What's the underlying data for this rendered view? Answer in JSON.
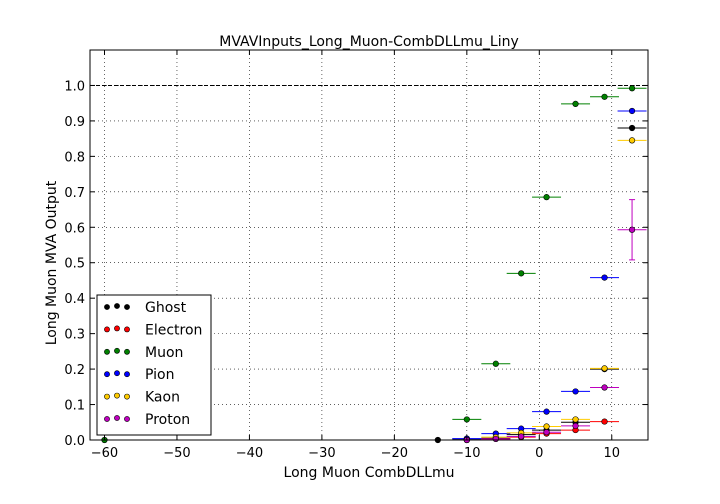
{
  "chart_data": {
    "type": "scatter",
    "title": "MVAVInputs_Long_Muon-CombDLLmu_Liny",
    "xlabel": "Long Muon CombDLLmu",
    "ylabel": "Long Muon MVA Output",
    "xlim": [
      -62,
      15
    ],
    "ylim": [
      0,
      1.1
    ],
    "x_ticks": [
      -60,
      -50,
      -40,
      -30,
      -20,
      -10,
      0,
      10
    ],
    "y_ticks": [
      0.0,
      0.1,
      0.2,
      0.3,
      0.4,
      0.5,
      0.6,
      0.7,
      0.8,
      0.9,
      1.0
    ],
    "x_tick_labels": [
      "−60",
      "−50",
      "−40",
      "−30",
      "−20",
      "−10",
      "0",
      "10"
    ],
    "y_tick_labels": [
      "0.0",
      "0.1",
      "0.2",
      "0.3",
      "0.4",
      "0.5",
      "0.6",
      "0.7",
      "0.8",
      "0.9",
      "1.0"
    ],
    "grid": true,
    "reference_line_y": 1.0,
    "legend_position": "lower-left",
    "series": [
      {
        "name": "Ghost",
        "color": "#000000",
        "points": [
          {
            "x": -14,
            "y": 0.0,
            "xerr": 2,
            "yerr": 0.003
          },
          {
            "x": -10,
            "y": 0.003,
            "xerr": 2,
            "yerr": 0.003
          },
          {
            "x": -6,
            "y": 0.005,
            "xerr": 2,
            "yerr": 0.003
          },
          {
            "x": -2.5,
            "y": 0.015,
            "xerr": 2,
            "yerr": 0.003
          },
          {
            "x": 1,
            "y": 0.028,
            "xerr": 2,
            "yerr": 0.003
          },
          {
            "x": 5,
            "y": 0.05,
            "xerr": 2,
            "yerr": 0.004
          },
          {
            "x": 9,
            "y": 0.2,
            "xerr": 2,
            "yerr": 0.005
          },
          {
            "x": 12.8,
            "y": 0.88,
            "xerr": 2,
            "yerr": 0.006
          }
        ]
      },
      {
        "name": "Electron",
        "color": "#ff0000",
        "points": [
          {
            "x": -10,
            "y": 0.0,
            "xerr": 2,
            "yerr": 0.002
          },
          {
            "x": -6,
            "y": 0.003,
            "xerr": 2,
            "yerr": 0.002
          },
          {
            "x": -2.5,
            "y": 0.008,
            "xerr": 2,
            "yerr": 0.002
          },
          {
            "x": 1,
            "y": 0.018,
            "xerr": 2,
            "yerr": 0.003
          },
          {
            "x": 5,
            "y": 0.028,
            "xerr": 2,
            "yerr": 0.003
          },
          {
            "x": 9,
            "y": 0.052,
            "xerr": 2,
            "yerr": 0.004
          }
        ]
      },
      {
        "name": "Muon",
        "color": "#008000",
        "points": [
          {
            "x": -60,
            "y": 0.0,
            "xerr": 0,
            "yerr": 0.001
          },
          {
            "x": -10,
            "y": 0.058,
            "xerr": 2,
            "yerr": 0.004
          },
          {
            "x": -6,
            "y": 0.215,
            "xerr": 2,
            "yerr": 0.005
          },
          {
            "x": -2.5,
            "y": 0.47,
            "xerr": 2,
            "yerr": 0.005
          },
          {
            "x": 1,
            "y": 0.685,
            "xerr": 2,
            "yerr": 0.005
          },
          {
            "x": 5,
            "y": 0.948,
            "xerr": 2,
            "yerr": 0.004
          },
          {
            "x": 9,
            "y": 0.968,
            "xerr": 2,
            "yerr": 0.004
          },
          {
            "x": 12.8,
            "y": 0.992,
            "xerr": 2,
            "yerr": 0.003
          }
        ]
      },
      {
        "name": "Pion",
        "color": "#0000ff",
        "points": [
          {
            "x": -10,
            "y": 0.004,
            "xerr": 2,
            "yerr": 0.002
          },
          {
            "x": -6,
            "y": 0.018,
            "xerr": 2,
            "yerr": 0.003
          },
          {
            "x": -2.5,
            "y": 0.032,
            "xerr": 2,
            "yerr": 0.003
          },
          {
            "x": 1,
            "y": 0.08,
            "xerr": 2,
            "yerr": 0.004
          },
          {
            "x": 5,
            "y": 0.137,
            "xerr": 2,
            "yerr": 0.004
          },
          {
            "x": 9,
            "y": 0.458,
            "xerr": 2,
            "yerr": 0.006
          },
          {
            "x": 12.8,
            "y": 0.928,
            "xerr": 2,
            "yerr": 0.005
          }
        ]
      },
      {
        "name": "Kaon",
        "color": "#ffcc00",
        "points": [
          {
            "x": -10,
            "y": 0.0,
            "xerr": 2,
            "yerr": 0.002
          },
          {
            "x": -6,
            "y": 0.008,
            "xerr": 2,
            "yerr": 0.002
          },
          {
            "x": -2.5,
            "y": 0.02,
            "xerr": 2,
            "yerr": 0.003
          },
          {
            "x": 1,
            "y": 0.038,
            "xerr": 2,
            "yerr": 0.003
          },
          {
            "x": 5,
            "y": 0.058,
            "xerr": 2,
            "yerr": 0.004
          },
          {
            "x": 9,
            "y": 0.202,
            "xerr": 2,
            "yerr": 0.006
          },
          {
            "x": 12.8,
            "y": 0.845,
            "xerr": 2,
            "yerr": 0.008
          }
        ]
      },
      {
        "name": "Proton",
        "color": "#bf00bf",
        "points": [
          {
            "x": -10,
            "y": 0.0,
            "xerr": 2,
            "yerr": 0.002
          },
          {
            "x": -6,
            "y": 0.003,
            "xerr": 2,
            "yerr": 0.002
          },
          {
            "x": -2.5,
            "y": 0.01,
            "xerr": 2,
            "yerr": 0.002
          },
          {
            "x": 1,
            "y": 0.022,
            "xerr": 2,
            "yerr": 0.003
          },
          {
            "x": 5,
            "y": 0.04,
            "xerr": 2,
            "yerr": 0.004
          },
          {
            "x": 9,
            "y": 0.148,
            "xerr": 2,
            "yerr": 0.008
          },
          {
            "x": 12.8,
            "y": 0.593,
            "xerr": 2,
            "yerr": 0.085
          }
        ]
      }
    ]
  }
}
